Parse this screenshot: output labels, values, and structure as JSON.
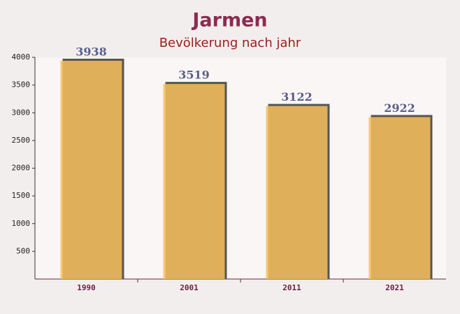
{
  "chart_data": {
    "type": "bar",
    "title": "Jarmen",
    "subtitle": "Bevölkerung nach jahr",
    "categories": [
      "1990",
      "2001",
      "2011",
      "2021"
    ],
    "values": [
      3938,
      3519,
      3122,
      2922
    ],
    "color": "#f9bf5a",
    "ylim": [
      0,
      4000
    ],
    "yticks": [
      500,
      1000,
      1500,
      2000,
      2500,
      3000,
      3500,
      4000
    ]
  }
}
